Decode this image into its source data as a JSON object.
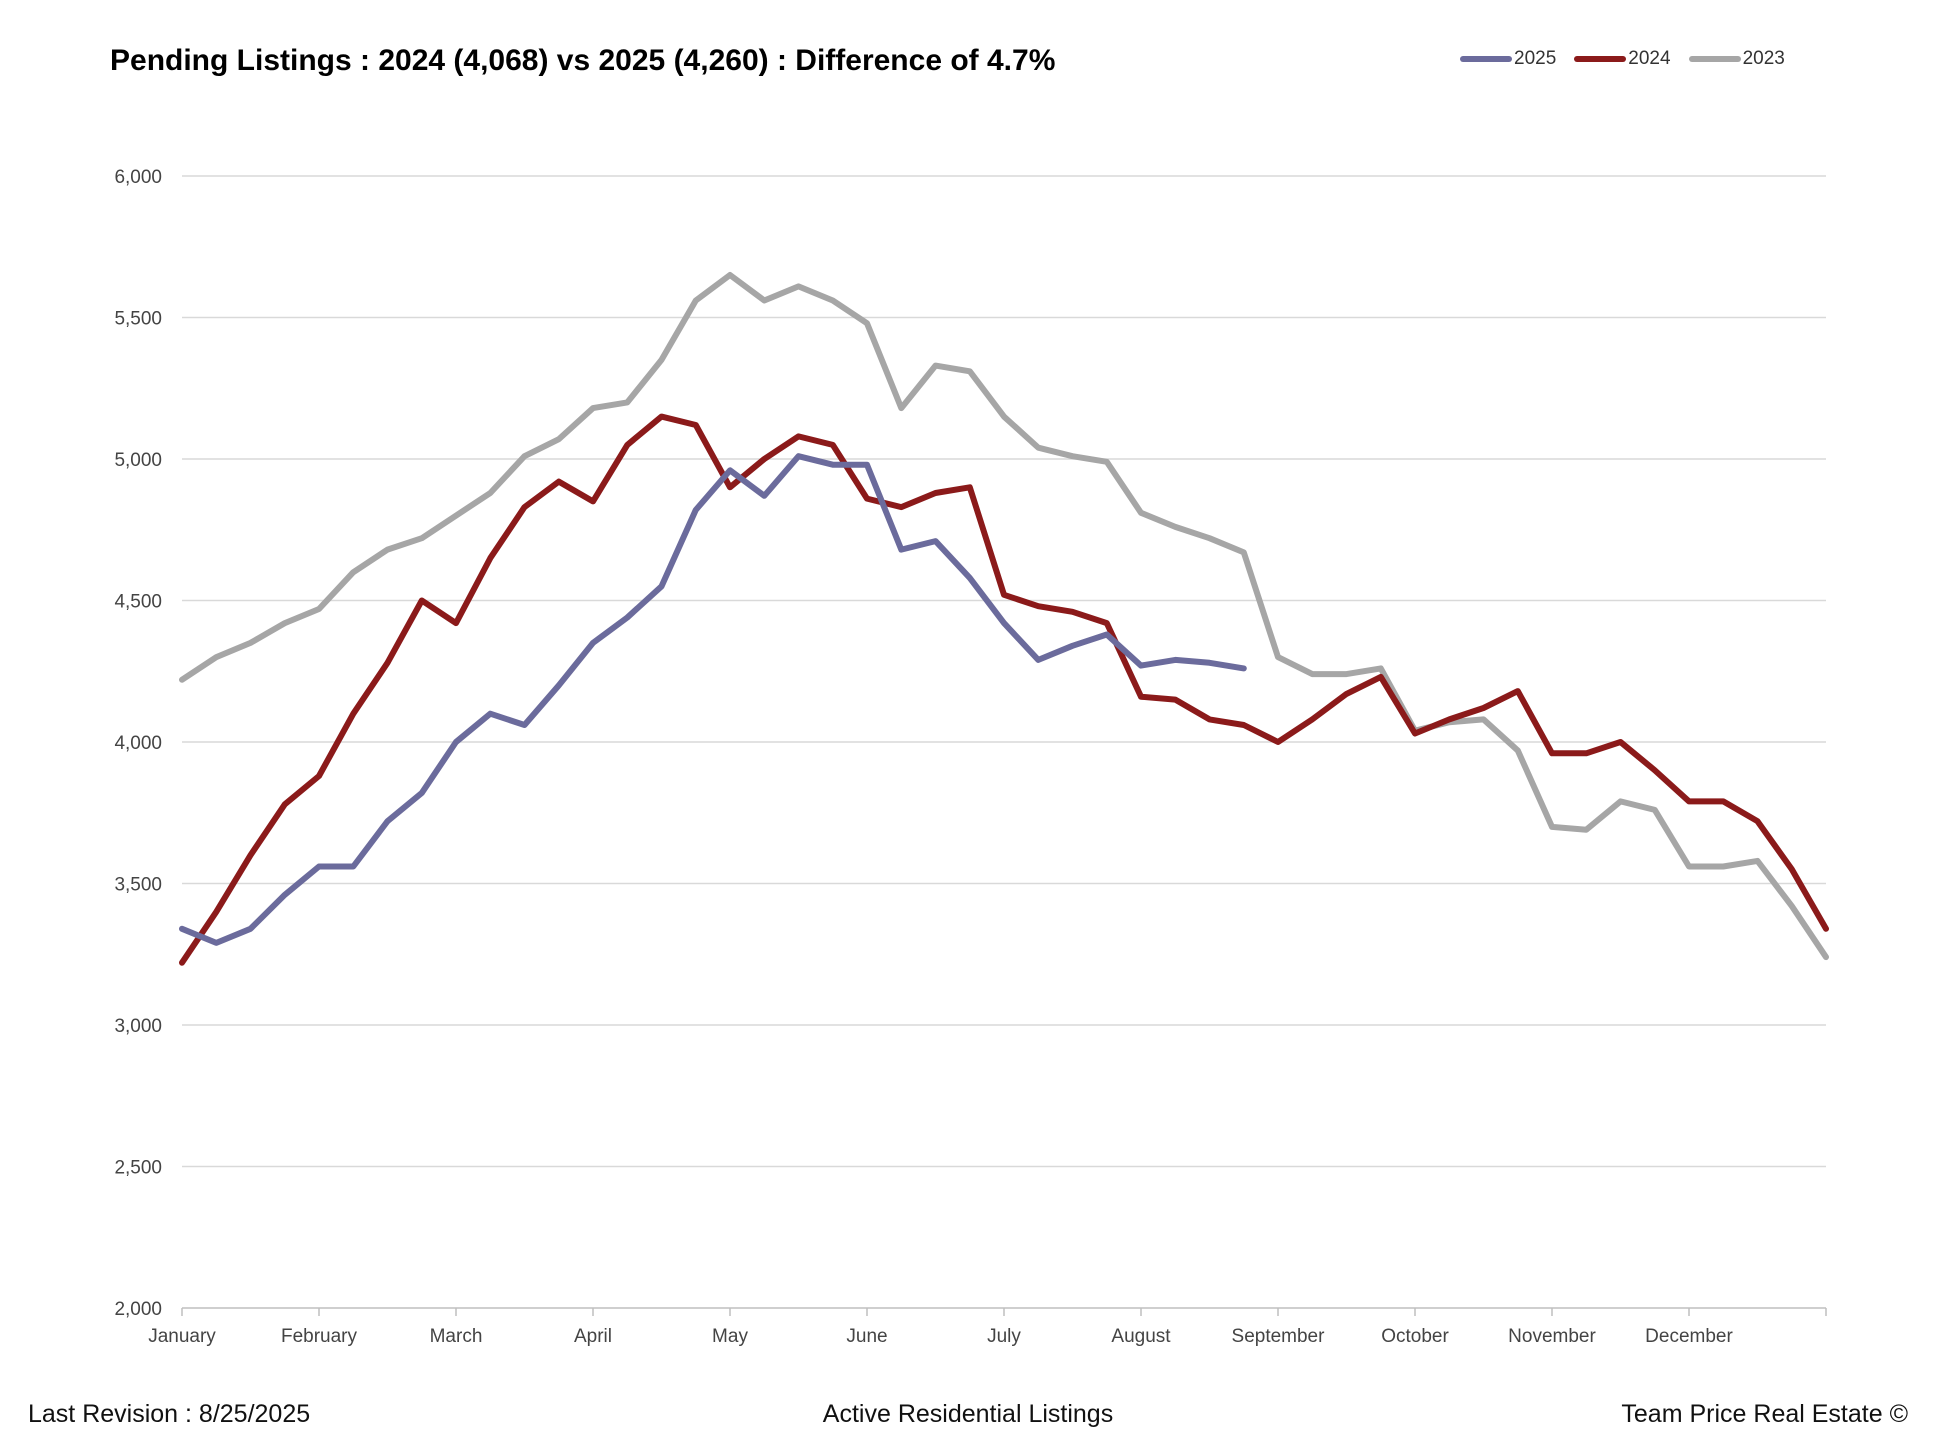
{
  "footer": {
    "left": "Last Revision : 8/25/2025",
    "center": "Active Residential Listings",
    "right": "Team Price Real Estate ©"
  },
  "chart_data": {
    "type": "line",
    "title": "Pending Listings : 2024 (4,068) vs 2025 (4,260) : Difference of 4.7%",
    "xlabel": "",
    "ylabel": "",
    "x_ticks": [
      "January",
      "February",
      "March",
      "April",
      "May",
      "June",
      "July",
      "August",
      "September",
      "October",
      "November",
      "December"
    ],
    "y_ticks": [
      "2,000",
      "2,500",
      "3,000",
      "3,500",
      "4,000",
      "4,500",
      "5,000",
      "5,500",
      "6,000"
    ],
    "ylim": [
      2000,
      6000
    ],
    "xlim": [
      0,
      12
    ],
    "grid": true,
    "legend_position": "top-right",
    "series": [
      {
        "name": "2025",
        "color": "#6b6b9c",
        "x": [
          0,
          0.25,
          0.5,
          0.75,
          1,
          1.25,
          1.5,
          1.75,
          2,
          2.25,
          2.5,
          2.75,
          3,
          3.25,
          3.5,
          3.75,
          4,
          4.25,
          4.5,
          4.75,
          5,
          5.25,
          5.5,
          5.75,
          6,
          6.25,
          6.5,
          6.75,
          7,
          7.25,
          7.5,
          7.75
        ],
        "y": [
          3340,
          3290,
          3340,
          3460,
          3560,
          3560,
          3720,
          3820,
          4000,
          4100,
          4060,
          4200,
          4350,
          4440,
          4550,
          4820,
          4960,
          4870,
          5010,
          4980,
          4980,
          4680,
          4710,
          4580,
          4420,
          4290,
          4340,
          4380,
          4270,
          4290,
          4280,
          4260
        ]
      },
      {
        "name": "2024",
        "color": "#8b1a1a",
        "x": [
          0,
          0.25,
          0.5,
          0.75,
          1,
          1.25,
          1.5,
          1.75,
          2,
          2.25,
          2.5,
          2.75,
          3,
          3.25,
          3.5,
          3.75,
          4,
          4.25,
          4.5,
          4.75,
          5,
          5.25,
          5.5,
          5.75,
          6,
          6.25,
          6.5,
          6.75,
          7,
          7.25,
          7.5,
          7.75,
          8,
          8.25,
          8.5,
          8.75,
          9,
          9.25,
          9.5,
          9.75,
          10,
          10.25,
          10.5,
          10.75,
          11,
          11.25,
          11.5,
          11.75,
          12
        ],
        "y": [
          3220,
          3400,
          3600,
          3780,
          3880,
          4100,
          4280,
          4500,
          4420,
          4650,
          4830,
          4920,
          4850,
          5050,
          5150,
          5120,
          4900,
          5000,
          5080,
          5050,
          4860,
          4830,
          4880,
          4900,
          4520,
          4480,
          4460,
          4420,
          4160,
          4150,
          4080,
          4060,
          4000,
          4080,
          4170,
          4230,
          4030,
          4080,
          4120,
          4180,
          3960,
          3960,
          4000,
          3900,
          3790,
          3790,
          3720,
          3550,
          3340
        ]
      },
      {
        "name": "2023",
        "color": "#a6a6a6",
        "x": [
          0,
          0.25,
          0.5,
          0.75,
          1,
          1.25,
          1.5,
          1.75,
          2,
          2.25,
          2.5,
          2.75,
          3,
          3.25,
          3.5,
          3.75,
          4,
          4.25,
          4.5,
          4.75,
          5,
          5.25,
          5.5,
          5.75,
          6,
          6.25,
          6.5,
          6.75,
          7,
          7.25,
          7.5,
          7.75,
          8,
          8.25,
          8.5,
          8.75,
          9,
          9.25,
          9.5,
          9.75,
          10,
          10.25,
          10.5,
          10.75,
          11,
          11.25,
          11.5,
          11.75,
          12
        ],
        "y": [
          4220,
          4300,
          4350,
          4420,
          4470,
          4600,
          4680,
          4720,
          4800,
          4880,
          5010,
          5070,
          5180,
          5200,
          5350,
          5560,
          5650,
          5560,
          5610,
          5560,
          5480,
          5180,
          5330,
          5310,
          5150,
          5040,
          5010,
          4990,
          4810,
          4760,
          4720,
          4670,
          4300,
          4240,
          4240,
          4260,
          4040,
          4070,
          4080,
          3970,
          3700,
          3690,
          3790,
          3760,
          3560,
          3560,
          3580,
          3420,
          3240
        ]
      }
    ]
  }
}
